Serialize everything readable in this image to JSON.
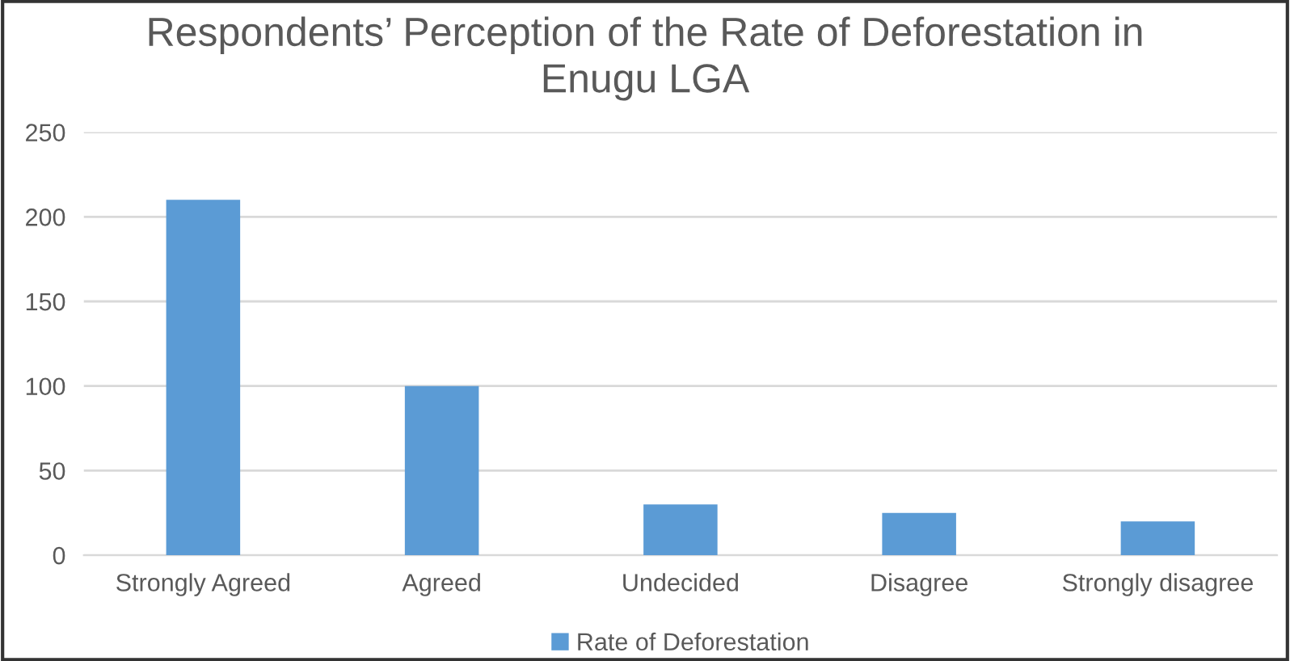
{
  "chart_data": {
    "type": "bar",
    "title": "Respondents’ Perception of the Rate of Deforestation in\nEnugu LGA",
    "categories": [
      "Strongly Agreed",
      "Agreed",
      "Undecided",
      "Disagree",
      "Strongly disagree"
    ],
    "series": [
      {
        "name": "Rate of Deforestation",
        "color": "#5b9bd5",
        "values": [
          210,
          100,
          30,
          25,
          20
        ]
      }
    ],
    "ylim": [
      0,
      250
    ],
    "yticks": [
      0,
      50,
      100,
      150,
      200,
      250
    ],
    "grid": "y",
    "legend": "bottom"
  }
}
